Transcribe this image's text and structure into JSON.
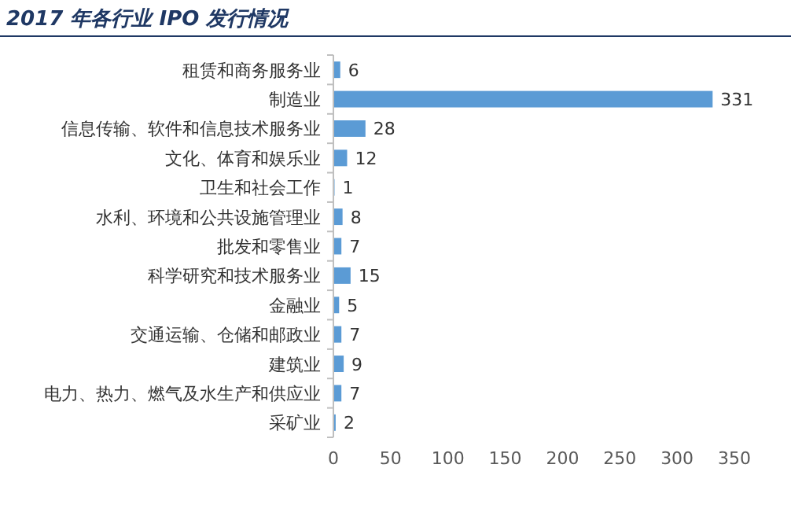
{
  "chart_data": {
    "type": "bar",
    "orientation": "horizontal",
    "title": "2017 年各行业 IPO 发行情况",
    "categories": [
      "租赁和商务服务业",
      "制造业",
      "信息传输、软件和信息技术服务业",
      "文化、体育和娱乐业",
      "卫生和社会工作",
      "水利、环境和公共设施管理业",
      "批发和零售业",
      "科学研究和技术服务业",
      "金融业",
      "交通运输、仓储和邮政业",
      "建筑业",
      "电力、热力、燃气及水生产和供应业",
      "采矿业"
    ],
    "values": [
      6,
      331,
      28,
      12,
      1,
      8,
      7,
      15,
      5,
      7,
      9,
      7,
      2
    ],
    "color": "#5b9bd5",
    "xlim": [
      0,
      350
    ],
    "xticks": [
      0,
      50,
      100,
      150,
      200,
      250,
      300,
      350
    ],
    "data_labels": true
  }
}
